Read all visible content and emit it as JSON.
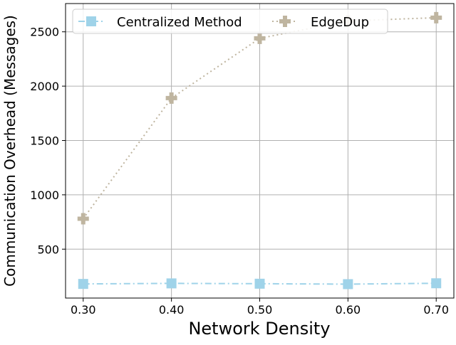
{
  "chart_data": {
    "type": "line",
    "title": "",
    "xlabel": "Network Density",
    "ylabel": "Communication Overhead (Messages)",
    "x": [
      0.3,
      0.4,
      0.5,
      0.6,
      0.7
    ],
    "x_tick_labels": [
      "0.30",
      "0.40",
      "0.50",
      "0.60",
      "0.70"
    ],
    "xlim": [
      0.28,
      0.72
    ],
    "ylim": [
      50,
      2760
    ],
    "y_ticks": [
      500,
      1000,
      1500,
      2000,
      2500
    ],
    "y_tick_labels": [
      "500",
      "1000",
      "1500",
      "2000",
      "2500"
    ],
    "grid": true,
    "legend_position": "top",
    "series": [
      {
        "name": "Centralized Method",
        "values": [
          180,
          185,
          182,
          178,
          186
        ],
        "color": "#9fd3e9",
        "line_style": "dash-dot",
        "marker": "square"
      },
      {
        "name": "EdgeDup",
        "values": [
          780,
          1890,
          2440,
          2600,
          2630
        ],
        "color": "#bfb5a0",
        "line_style": "dotted",
        "marker": "plus"
      }
    ]
  }
}
